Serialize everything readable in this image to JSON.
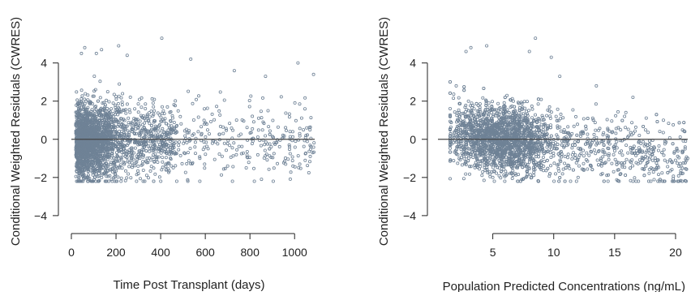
{
  "chart_data": [
    {
      "type": "scatter",
      "ylabel": "Conditional Weighted Residuals (CWRES)",
      "xlabel": "Time Post Transplant (days)",
      "xlim": [
        0,
        1090
      ],
      "ylim": [
        -4.6,
        5.6
      ],
      "xticks": [
        0,
        200,
        400,
        600,
        800,
        1000
      ],
      "xtick_labels": [
        "0",
        "200",
        "400",
        "600",
        "800",
        "1000"
      ],
      "yticks": [
        4,
        2,
        0,
        -2,
        -4
      ],
      "ytick_labels": [
        "4",
        "2",
        "0",
        "−2",
        "−4"
      ],
      "reference_line_y": 0,
      "point_color": "#6f8296",
      "point_count_approx": 2600,
      "distribution": "x concentrated 20-250 days, spread to ~1090; residuals mostly within -2 to 2, max about 5.3",
      "points": [
        {
          "x": 45,
          "y": 4.5
        },
        {
          "x": 60,
          "y": 4.8
        },
        {
          "x": 112,
          "y": 4.5
        },
        {
          "x": 135,
          "y": 4.7
        },
        {
          "x": 212,
          "y": 4.9
        },
        {
          "x": 250,
          "y": 4.4
        },
        {
          "x": 405,
          "y": 5.3
        },
        {
          "x": 535,
          "y": 4.2
        },
        {
          "x": 1015,
          "y": 4.0
        },
        {
          "x": 1085,
          "y": 3.4
        },
        {
          "x": 870,
          "y": 3.3
        },
        {
          "x": 730,
          "y": 3.6
        },
        {
          "x": 40,
          "y": -1.9
        },
        {
          "x": 180,
          "y": -2.1
        },
        {
          "x": 300,
          "y": -1.8
        },
        {
          "x": 700,
          "y": -1.4
        },
        {
          "x": 960,
          "y": -1.3
        },
        {
          "x": 1070,
          "y": -0.9
        }
      ]
    },
    {
      "type": "scatter",
      "ylabel": "Conditional Weighted Residuals (CWRES)",
      "xlabel": "Population Predicted Concentrations (ng/mL)",
      "xlim": [
        0.5,
        21
      ],
      "ylim": [
        -4.6,
        5.6
      ],
      "xticks": [
        5,
        10,
        15,
        20
      ],
      "xtick_labels": [
        "5",
        "10",
        "15",
        "20"
      ],
      "yticks": [
        4,
        2,
        0,
        -2,
        -4
      ],
      "ytick_labels": [
        "4",
        "2",
        "0",
        "−2",
        "−4"
      ],
      "reference_line_y": 0,
      "point_color": "#6f8296",
      "point_count_approx": 2600,
      "distribution": "x concentrated 3-9 ng/mL, spread to ~21; residuals decline slightly with concentration, max about 5.3",
      "points": [
        {
          "x": 2.0,
          "y": 2.8
        },
        {
          "x": 2.8,
          "y": 4.6
        },
        {
          "x": 3.2,
          "y": 4.8
        },
        {
          "x": 4.5,
          "y": 4.9
        },
        {
          "x": 8.5,
          "y": 5.3
        },
        {
          "x": 8.0,
          "y": 4.6
        },
        {
          "x": 9.8,
          "y": 4.3
        },
        {
          "x": 10.5,
          "y": 3.3
        },
        {
          "x": 13.5,
          "y": 2.8
        },
        {
          "x": 16.5,
          "y": 2.2
        },
        {
          "x": 19.0,
          "y": 1.0
        },
        {
          "x": 20.5,
          "y": -1.8
        },
        {
          "x": 5.0,
          "y": -2.0
        },
        {
          "x": 12.0,
          "y": -2.0
        },
        {
          "x": 14.0,
          "y": -1.8
        },
        {
          "x": 18.0,
          "y": -1.5
        },
        {
          "x": 21.0,
          "y": -1.0
        },
        {
          "x": 3.0,
          "y": -0.5
        }
      ]
    }
  ]
}
